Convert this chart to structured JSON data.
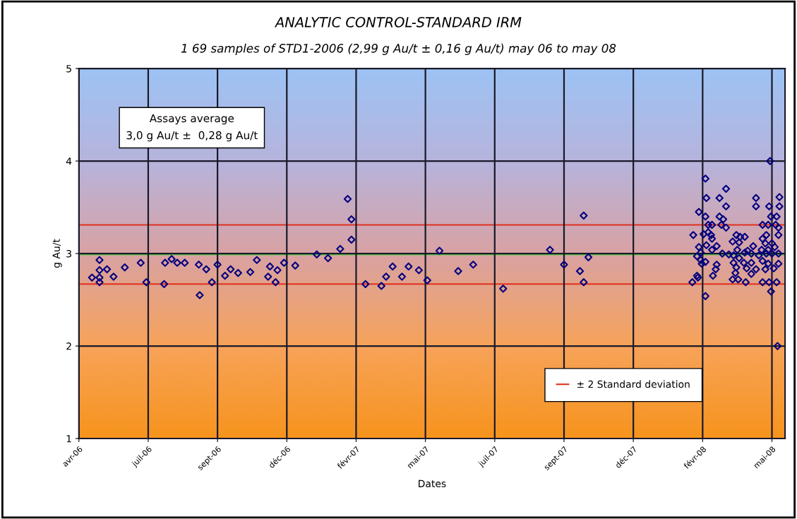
{
  "chart_data": {
    "type": "scatter",
    "title": "ANALYTIC CONTROL-STANDARD IRM",
    "subtitle": "1 69 samples of STD1-2006 (2,99 g Au/t ± 0,16 g Au/t) may 06 to may 08",
    "xlabel": "Dates",
    "ylabel": "g Au/t",
    "annotations": [
      "Assays average\n3,0 g Au/t ±  0,28 g Au/t"
    ],
    "xlim": [
      "2006-04-27",
      "2008-05-20"
    ],
    "xticks": [
      {
        "value": "2006-04-27",
        "label": "avr-06"
      },
      {
        "value": "2006-07-10",
        "label": "juil-06"
      },
      {
        "value": "2006-09-22",
        "label": "sept-06"
      },
      {
        "value": "2006-12-05",
        "label": "déc-06"
      },
      {
        "value": "2007-02-17",
        "label": "févr-07"
      },
      {
        "value": "2007-05-02",
        "label": "mai-07"
      },
      {
        "value": "2007-07-15",
        "label": "juil-07"
      },
      {
        "value": "2007-09-27",
        "label": "sept-07"
      },
      {
        "value": "2007-12-10",
        "label": "déc-07"
      },
      {
        "value": "2008-02-22",
        "label": "févr-08"
      },
      {
        "value": "2008-05-06",
        "label": "mai-08"
      }
    ],
    "ylim": [
      1,
      5
    ],
    "yticks": [
      1,
      2,
      3,
      4,
      5
    ],
    "grid": true,
    "legend": "bottom right",
    "marker": "diamond",
    "ref_lines": [
      {
        "axis": "y",
        "value": 3.31,
        "label": "± 2 Standard deviation",
        "color": "#e0301e"
      },
      {
        "axis": "y",
        "value": 2.67,
        "label": null,
        "color": "#e0301e"
      },
      {
        "axis": "y",
        "value": 2.99,
        "label": null,
        "color": "#5cc84a"
      }
    ],
    "series": [
      {
        "color": "#000080",
        "x": [
          "2006-05-11",
          "2006-05-19",
          "2006-05-19",
          "2006-05-19",
          "2006-05-19",
          "2006-05-27",
          "2006-06-03",
          "2006-06-15",
          "2006-07-02",
          "2006-07-08",
          "2006-07-27",
          "2006-07-28",
          "2006-08-04",
          "2006-08-10",
          "2006-08-18",
          "2006-09-02",
          "2006-09-03",
          "2006-09-10",
          "2006-09-16",
          "2006-09-22",
          "2006-09-30",
          "2006-10-06",
          "2006-10-14",
          "2006-10-27",
          "2006-11-03",
          "2006-11-15",
          "2006-11-17",
          "2006-11-23",
          "2006-11-25",
          "2006-12-02",
          "2006-12-14",
          "2007-01-06",
          "2007-01-18",
          "2007-01-31",
          "2007-02-08",
          "2007-02-12",
          "2007-02-12",
          "2007-02-27",
          "2007-03-16",
          "2007-03-21",
          "2007-03-28",
          "2007-04-07",
          "2007-04-14",
          "2007-04-25",
          "2007-05-04",
          "2007-05-17",
          "2007-06-06",
          "2007-06-22",
          "2007-07-24",
          "2007-09-12",
          "2007-09-27",
          "2007-10-14",
          "2007-10-18",
          "2007-10-23",
          "2007-10-18",
          "2008-05-04",
          "2008-02-25",
          "2008-03-18",
          "2008-02-26",
          "2008-03-11",
          "2008-04-19",
          "2008-05-14",
          "2008-03-18",
          "2008-04-19",
          "2008-05-03",
          "2008-05-14",
          "2008-02-18",
          "2008-02-25",
          "2008-03-11",
          "2008-03-15",
          "2008-05-05",
          "2008-05-11",
          "2008-03-13",
          "2008-02-28",
          "2008-03-03",
          "2008-04-26",
          "2008-05-02",
          "2008-05-10",
          "2008-03-18",
          "2008-05-13",
          "2008-02-12",
          "2008-02-23",
          "2008-02-28",
          "2008-03-02",
          "2008-05-13",
          "2008-03-03",
          "2008-03-29",
          "2008-04-02",
          "2008-04-07",
          "2008-04-30",
          "2008-03-25",
          "2008-04-01",
          "2008-04-26",
          "2008-04-29",
          "2008-05-06",
          "2008-02-26",
          "2008-03-08",
          "2008-04-16",
          "2008-02-18",
          "2008-05-09",
          "2008-03-03",
          "2008-03-30",
          "2008-04-10",
          "2008-04-25",
          "2008-05-02",
          "2008-02-20",
          "2008-03-14",
          "2008-03-21",
          "2008-03-26",
          "2008-04-07",
          "2008-04-14",
          "2008-04-22",
          "2008-04-30",
          "2008-05-06",
          "2008-05-13",
          "2008-02-16",
          "2008-04-01",
          "2008-02-20",
          "2008-02-25",
          "2008-03-26",
          "2008-04-06",
          "2008-04-14",
          "2008-04-26",
          "2008-05-02",
          "2008-05-13",
          "2008-02-21",
          "2008-03-08",
          "2008-03-29",
          "2008-04-09",
          "2008-04-29",
          "2008-05-08",
          "2008-03-07",
          "2008-04-19",
          "2008-03-28",
          "2008-04-14",
          "2008-02-16",
          "2008-03-04",
          "2008-02-17",
          "2008-03-25",
          "2008-03-31",
          "2008-02-11",
          "2008-04-08",
          "2008-04-26",
          "2008-05-03",
          "2008-05-11",
          "2008-05-05",
          "2008-02-25",
          "2008-05-12"
        ],
        "values": [
          2.74,
          2.93,
          2.82,
          2.74,
          2.69,
          2.83,
          2.75,
          2.85,
          2.9,
          2.69,
          2.67,
          2.9,
          2.94,
          2.9,
          2.9,
          2.88,
          2.55,
          2.83,
          2.69,
          2.88,
          2.76,
          2.83,
          2.79,
          2.8,
          2.93,
          2.75,
          2.86,
          2.69,
          2.82,
          2.9,
          2.87,
          2.99,
          2.95,
          3.05,
          3.59,
          3.37,
          3.15,
          2.67,
          2.65,
          2.75,
          2.86,
          2.75,
          2.86,
          2.82,
          2.71,
          3.03,
          2.81,
          2.88,
          2.62,
          3.04,
          2.88,
          2.81,
          3.41,
          2.96,
          2.69,
          4.0,
          3.81,
          3.7,
          3.6,
          3.6,
          3.6,
          3.61,
          3.51,
          3.51,
          3.51,
          3.51,
          3.45,
          3.4,
          3.4,
          3.37,
          3.4,
          3.4,
          3.31,
          3.31,
          3.31,
          3.31,
          3.31,
          3.31,
          3.28,
          3.28,
          3.2,
          3.21,
          3.23,
          3.2,
          3.2,
          3.16,
          3.2,
          3.18,
          3.18,
          3.2,
          3.13,
          3.12,
          3.16,
          3.11,
          3.11,
          3.09,
          3.08,
          3.08,
          3.07,
          3.07,
          3.04,
          3.04,
          3.03,
          3.04,
          3.04,
          3.01,
          3.0,
          2.99,
          2.98,
          3.01,
          3.0,
          2.98,
          3.0,
          3.0,
          3.0,
          2.97,
          2.95,
          2.93,
          2.91,
          2.9,
          2.9,
          2.9,
          2.92,
          2.89,
          2.89,
          2.89,
          2.88,
          2.85,
          2.84,
          2.83,
          2.84,
          2.83,
          2.83,
          2.79,
          2.78,
          2.76,
          2.76,
          2.74,
          2.72,
          2.72,
          2.69,
          2.69,
          2.69,
          2.69,
          2.69,
          2.59,
          2.54,
          2.0
        ]
      }
    ]
  }
}
